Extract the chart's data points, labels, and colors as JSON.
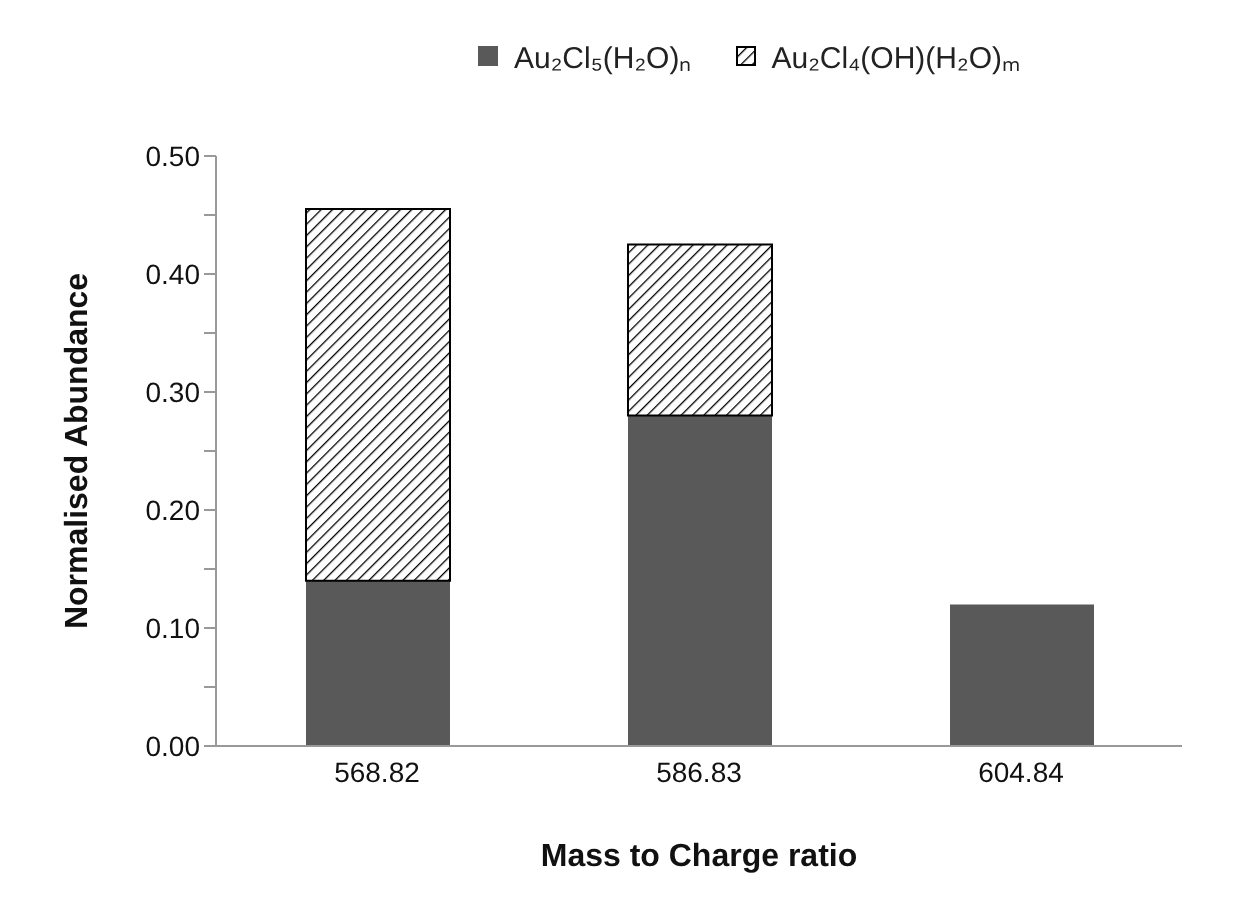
{
  "chart_data": {
    "type": "bar",
    "stacked": true,
    "xlabel": "Mass to Charge ratio",
    "ylabel": "Normalised Abundance",
    "categories": [
      "568.82",
      "586.83",
      "604.84"
    ],
    "series": [
      {
        "name": "Au₂Cl₅(H₂O)ₙ",
        "color": "#595959",
        "values": [
          0.14,
          0.28,
          0.12
        ]
      },
      {
        "name": "Au₂Cl₄(OH)(H₂O)ₘ",
        "color": "#000000",
        "values": [
          0.315,
          0.145,
          0
        ]
      }
    ],
    "ylim": [
      0,
      0.5
    ],
    "yticks": [
      {
        "value": 0,
        "label": "0.00"
      },
      {
        "value": 0.05,
        "label": null
      },
      {
        "value": 0.1,
        "label": "0.10"
      },
      {
        "value": 0.15,
        "label": null
      },
      {
        "value": 0.2,
        "label": "0.20"
      },
      {
        "value": 0.25,
        "label": null
      },
      {
        "value": 0.3,
        "label": "0.30"
      },
      {
        "value": 0.35,
        "label": null
      },
      {
        "value": 0.4,
        "label": "0.40"
      },
      {
        "value": 0.45,
        "label": null
      },
      {
        "value": 0.5,
        "label": "0.50"
      }
    ],
    "legend": "top",
    "grid": false
  }
}
